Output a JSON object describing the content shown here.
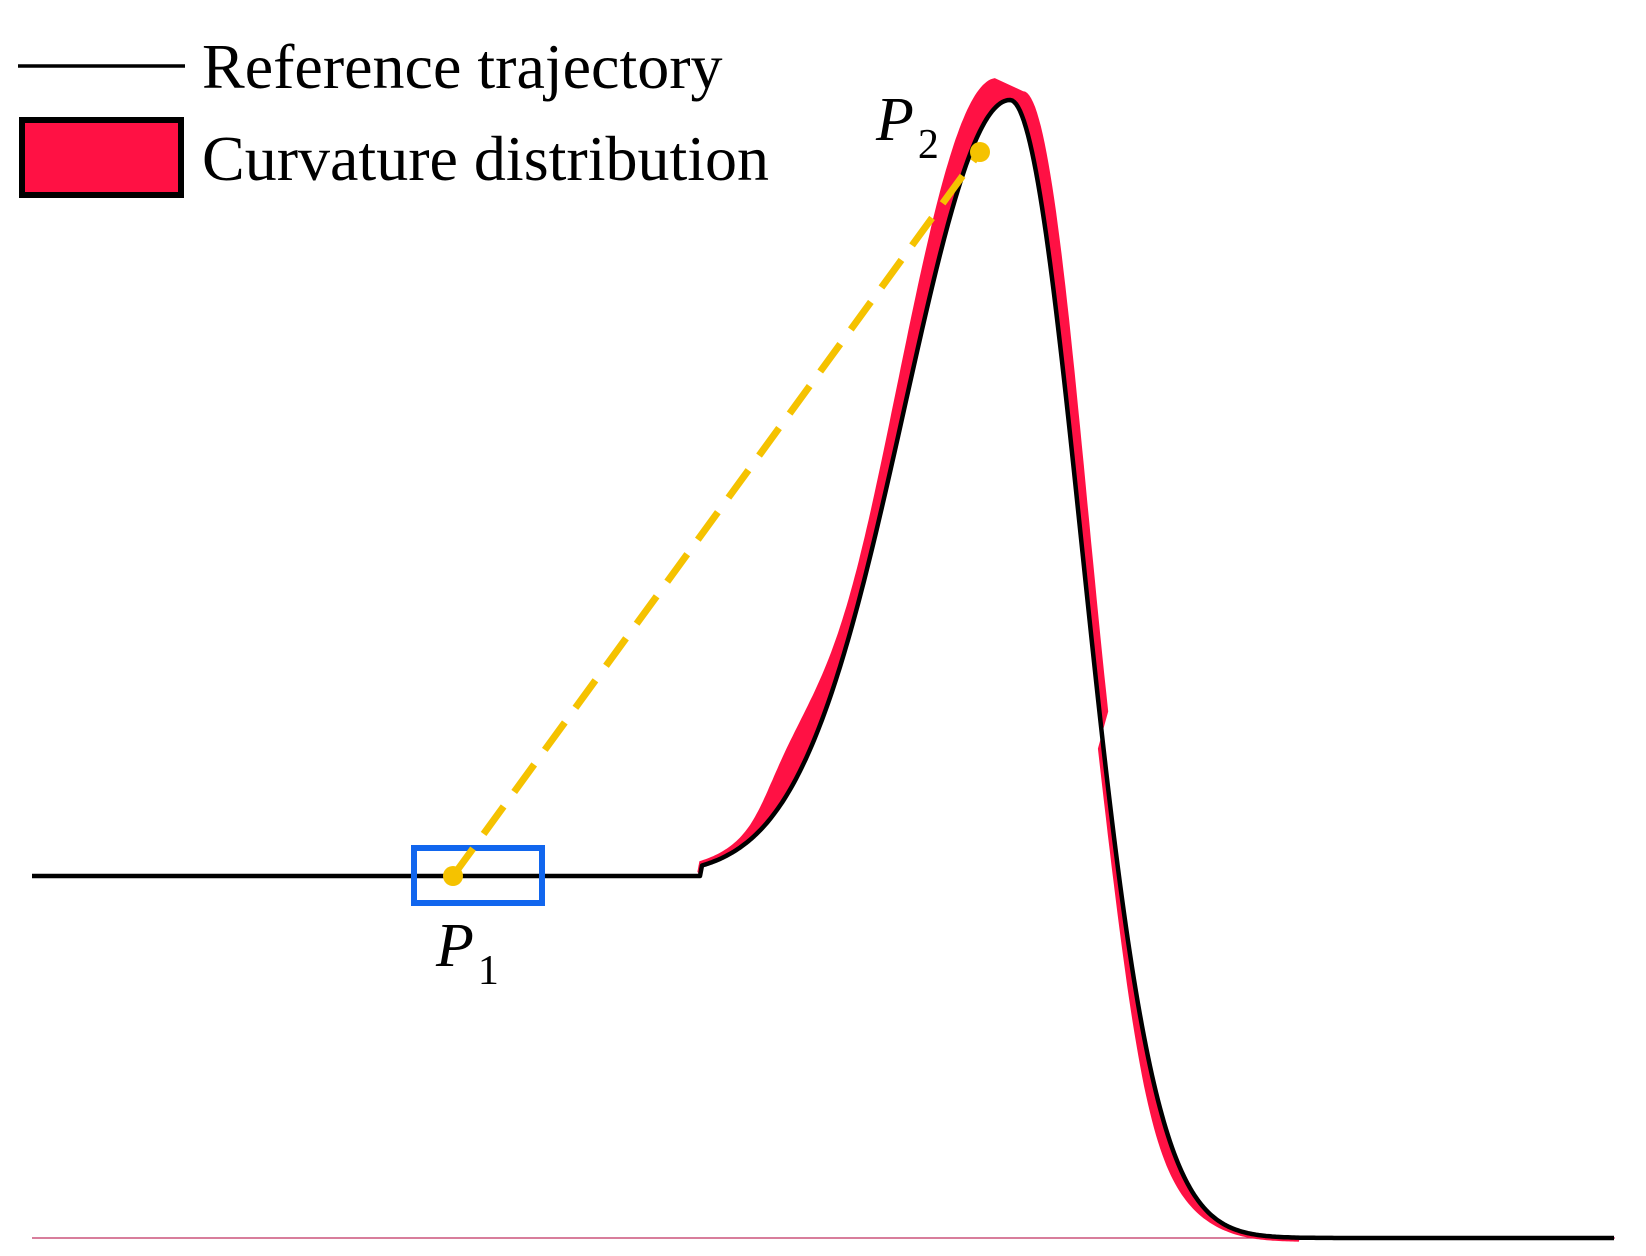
{
  "legend": {
    "line_label": "Reference trajectory",
    "band_label": "Curvature distribution"
  },
  "points": {
    "p1": {
      "letter": "P",
      "sub": "1"
    },
    "p2": {
      "letter": "P",
      "sub": "2"
    }
  },
  "colors": {
    "line": "#000000",
    "band": "#ff1144",
    "connector": "#f5c200",
    "highlight_box": "#1166ee",
    "baseline": "#c03060"
  }
}
